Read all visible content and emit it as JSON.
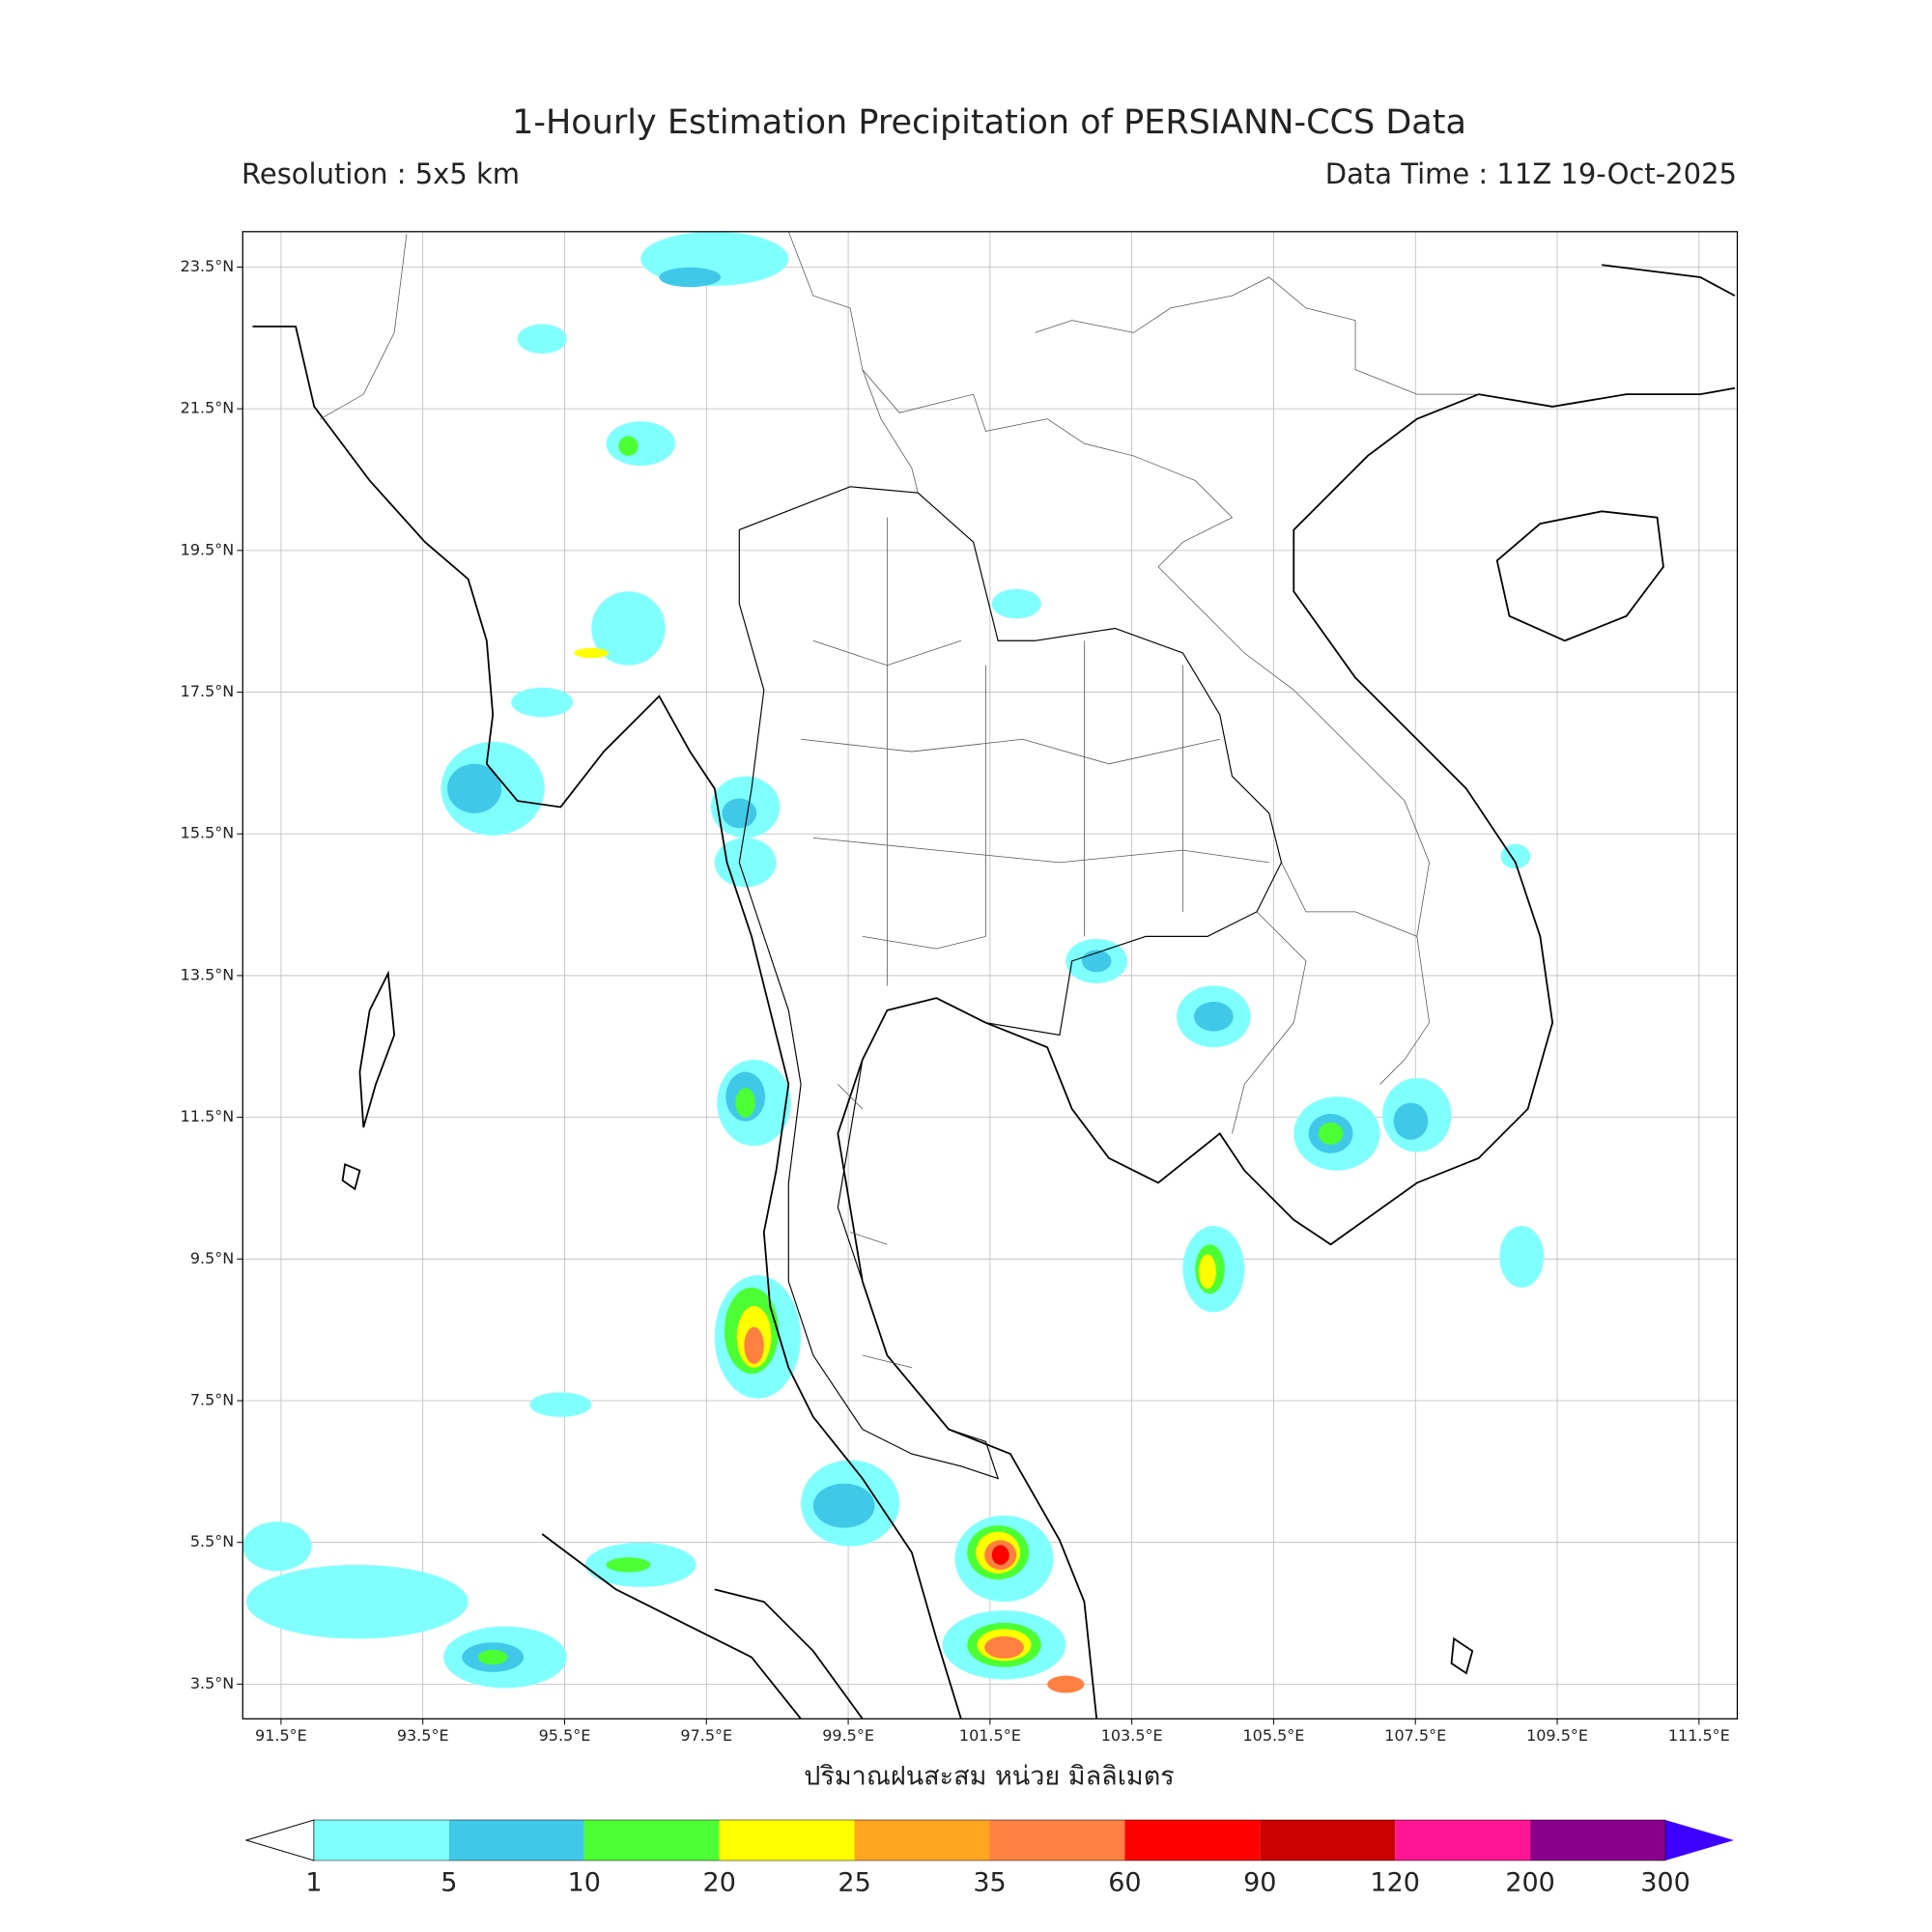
{
  "map": {
    "title": "1-Hourly Estimation Precipitation of PERSIANN-CCS Data",
    "resolution": "Resolution : 5x5 km",
    "data_time": "Data Time : 11Z 19-Oct-2025",
    "xlabel": "ปริมาณฝนสะสม หน่วย มิลลิเมตร",
    "lonlim": [
      90.96,
      112.04
    ],
    "latlim": [
      3.01,
      24.0
    ],
    "grid": true,
    "lonticks": [
      {
        "value": 91.5,
        "label": "91.5°E"
      },
      {
        "value": 93.5,
        "label": "93.5°E"
      },
      {
        "value": 95.5,
        "label": "95.5°E"
      },
      {
        "value": 97.5,
        "label": "97.5°E"
      },
      {
        "value": 99.5,
        "label": "99.5°E"
      },
      {
        "value": 101.5,
        "label": "101.5°E"
      },
      {
        "value": 103.5,
        "label": "103.5°E"
      },
      {
        "value": 105.5,
        "label": "105.5°E"
      },
      {
        "value": 107.5,
        "label": "107.5°E"
      },
      {
        "value": 109.5,
        "label": "109.5°E"
      },
      {
        "value": 111.5,
        "label": "111.5°E"
      }
    ],
    "latticks": [
      {
        "value": 23.5,
        "label": "23.5°N"
      },
      {
        "value": 21.5,
        "label": "21.5°N"
      },
      {
        "value": 19.5,
        "label": "19.5°N"
      },
      {
        "value": 17.5,
        "label": "17.5°N"
      },
      {
        "value": 15.5,
        "label": "15.5°N"
      },
      {
        "value": 13.5,
        "label": "13.5°N"
      },
      {
        "value": 11.5,
        "label": "11.5°N"
      },
      {
        "value": 9.5,
        "label": "9.5°N"
      },
      {
        "value": 7.5,
        "label": "7.5°N"
      },
      {
        "value": 5.5,
        "label": "5.5°N"
      },
      {
        "value": 3.5,
        "label": "3.5°N"
      }
    ],
    "colorbar": {
      "levels": [
        1,
        5,
        10,
        20,
        25,
        35,
        60,
        90,
        120,
        200,
        300
      ],
      "colors": [
        "#80ffff",
        "#40c8e8",
        "#4cff33",
        "#ffff00",
        "#ffa520",
        "#ff8040",
        "#ff0000",
        "#cc0000",
        "#ff1493",
        "#8b008b"
      ],
      "under": "#ffffff",
      "over": "#3d00ff"
    }
  }
}
